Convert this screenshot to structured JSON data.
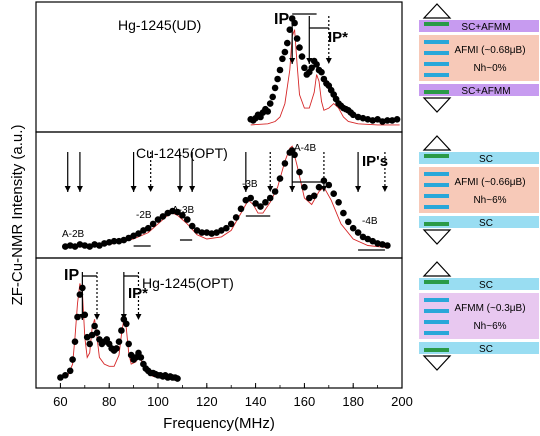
{
  "chart_data": {
    "type": "scatter",
    "xlabel": "Frequency(MHz)",
    "ylabel": "ZF-Cu-NMR Intensity  (a.u.)",
    "xlim": [
      50,
      200
    ],
    "x_ticks": [
      "60",
      "80",
      "100",
      "120",
      "140",
      "160",
      "180",
      "200"
    ],
    "panels": [
      {
        "name": "Hg-1245(UD)",
        "annotations": [
          "IP",
          "IP*"
        ],
        "points": [
          [
            138,
            0.06
          ],
          [
            139,
            0.05
          ],
          [
            140,
            0.07
          ],
          [
            141,
            0.1
          ],
          [
            142,
            0.08
          ],
          [
            143,
            0.12
          ],
          [
            144,
            0.15
          ],
          [
            145,
            0.13
          ],
          [
            146,
            0.2
          ],
          [
            147,
            0.26
          ],
          [
            148,
            0.34
          ],
          [
            149,
            0.42
          ],
          [
            150,
            0.5
          ],
          [
            151,
            0.6
          ],
          [
            152,
            0.66
          ],
          [
            153,
            0.74
          ],
          [
            154,
            0.86
          ],
          [
            155,
            0.96
          ],
          [
            156,
            0.92
          ],
          [
            157,
            0.78
          ],
          [
            158,
            0.7
          ],
          [
            159,
            0.62
          ],
          [
            160,
            0.52
          ],
          [
            161,
            0.46
          ],
          [
            162,
            0.48
          ],
          [
            163,
            0.52
          ],
          [
            164,
            0.58
          ],
          [
            165,
            0.55
          ],
          [
            166,
            0.5
          ],
          [
            167,
            0.48
          ],
          [
            168,
            0.42
          ],
          [
            169,
            0.38
          ],
          [
            170,
            0.36
          ],
          [
            171,
            0.32
          ],
          [
            172,
            0.28
          ],
          [
            173,
            0.24
          ],
          [
            174,
            0.2
          ],
          [
            175,
            0.18
          ],
          [
            176,
            0.16
          ],
          [
            177,
            0.15
          ],
          [
            178,
            0.14
          ],
          [
            179,
            0.12
          ],
          [
            180,
            0.1
          ],
          [
            182,
            0.08
          ],
          [
            184,
            0.07
          ],
          [
            186,
            0.06
          ],
          [
            188,
            0.05
          ],
          [
            190,
            0.06
          ],
          [
            192,
            0.04
          ],
          [
            194,
            0.05
          ],
          [
            196,
            0.05
          ],
          [
            198,
            0.06
          ]
        ],
        "fit_curve": [
          [
            138,
            0.01
          ],
          [
            145,
            0.02
          ],
          [
            148,
            0.04
          ],
          [
            150,
            0.08
          ],
          [
            152,
            0.2
          ],
          [
            154,
            0.5
          ],
          [
            155,
            0.8
          ],
          [
            156,
            0.86
          ],
          [
            157,
            0.55
          ],
          [
            158,
            0.28
          ],
          [
            160,
            0.16
          ],
          [
            162,
            0.16
          ],
          [
            164,
            0.3
          ],
          [
            165,
            0.46
          ],
          [
            166,
            0.4
          ],
          [
            167,
            0.22
          ],
          [
            168,
            0.14
          ],
          [
            170,
            0.16
          ],
          [
            172,
            0.2
          ],
          [
            174,
            0.16
          ],
          [
            176,
            0.08
          ],
          [
            178,
            0.04
          ],
          [
            182,
            0.02
          ],
          [
            190,
            0.01
          ],
          [
            199,
            0.01
          ]
        ]
      },
      {
        "name": "Cu-1245(OPT)",
        "annotations": [
          "IP's",
          "A-2B",
          "-2B",
          "A-3B",
          "-3B",
          "A-4B",
          "-4B"
        ],
        "points": [
          [
            62,
            0.05
          ],
          [
            64,
            0.06
          ],
          [
            66,
            0.05
          ],
          [
            68,
            0.07
          ],
          [
            70,
            0.06
          ],
          [
            72,
            0.05
          ],
          [
            74,
            0.07
          ],
          [
            76,
            0.06
          ],
          [
            78,
            0.08
          ],
          [
            80,
            0.09
          ],
          [
            82,
            0.1
          ],
          [
            84,
            0.1
          ],
          [
            86,
            0.11
          ],
          [
            88,
            0.13
          ],
          [
            90,
            0.15
          ],
          [
            92,
            0.17
          ],
          [
            94,
            0.2
          ],
          [
            96,
            0.22
          ],
          [
            98,
            0.26
          ],
          [
            100,
            0.3
          ],
          [
            102,
            0.33
          ],
          [
            104,
            0.36
          ],
          [
            106,
            0.38
          ],
          [
            108,
            0.37
          ],
          [
            110,
            0.34
          ],
          [
            112,
            0.3
          ],
          [
            114,
            0.24
          ],
          [
            116,
            0.2
          ],
          [
            118,
            0.18
          ],
          [
            120,
            0.18
          ],
          [
            122,
            0.17
          ],
          [
            124,
            0.18
          ],
          [
            126,
            0.2
          ],
          [
            128,
            0.22
          ],
          [
            130,
            0.26
          ],
          [
            132,
            0.32
          ],
          [
            134,
            0.4
          ],
          [
            136,
            0.48
          ],
          [
            138,
            0.5
          ],
          [
            140,
            0.45
          ],
          [
            142,
            0.42
          ],
          [
            144,
            0.46
          ],
          [
            146,
            0.5
          ],
          [
            148,
            0.56
          ],
          [
            150,
            0.68
          ],
          [
            152,
            0.82
          ],
          [
            154,
            0.92
          ],
          [
            155,
            0.94
          ],
          [
            156,
            0.9
          ],
          [
            158,
            0.74
          ],
          [
            160,
            0.6
          ],
          [
            162,
            0.5
          ],
          [
            164,
            0.52
          ],
          [
            166,
            0.6
          ],
          [
            168,
            0.66
          ],
          [
            170,
            0.62
          ],
          [
            172,
            0.54
          ],
          [
            174,
            0.46
          ],
          [
            176,
            0.36
          ],
          [
            178,
            0.28
          ],
          [
            180,
            0.22
          ],
          [
            182,
            0.18
          ],
          [
            184,
            0.14
          ],
          [
            186,
            0.12
          ],
          [
            188,
            0.1
          ],
          [
            190,
            0.08
          ],
          [
            192,
            0.07
          ],
          [
            194,
            0.06
          ]
        ],
        "fit_curve": [
          [
            62,
            0.04
          ],
          [
            70,
            0.05
          ],
          [
            80,
            0.07
          ],
          [
            90,
            0.12
          ],
          [
            96,
            0.18
          ],
          [
            100,
            0.26
          ],
          [
            104,
            0.34
          ],
          [
            106,
            0.36
          ],
          [
            108,
            0.34
          ],
          [
            112,
            0.26
          ],
          [
            116,
            0.16
          ],
          [
            120,
            0.12
          ],
          [
            126,
            0.14
          ],
          [
            130,
            0.2
          ],
          [
            134,
            0.36
          ],
          [
            137,
            0.48
          ],
          [
            139,
            0.44
          ],
          [
            141,
            0.36
          ],
          [
            143,
            0.36
          ],
          [
            146,
            0.46
          ],
          [
            149,
            0.6
          ],
          [
            152,
            0.84
          ],
          [
            154,
            0.96
          ],
          [
            155,
            0.98
          ],
          [
            157,
            0.8
          ],
          [
            160,
            0.5
          ],
          [
            163,
            0.44
          ],
          [
            166,
            0.56
          ],
          [
            168,
            0.6
          ],
          [
            171,
            0.48
          ],
          [
            175,
            0.26
          ],
          [
            180,
            0.12
          ],
          [
            186,
            0.06
          ],
          [
            194,
            0.04
          ]
        ]
      },
      {
        "name": "Hg-1245(OPT)",
        "annotations": [
          "IP",
          "IP*"
        ],
        "points": [
          [
            60,
            0.04
          ],
          [
            62,
            0.06
          ],
          [
            64,
            0.1
          ],
          [
            65,
            0.2
          ],
          [
            66,
            0.36
          ],
          [
            67,
            0.58
          ],
          [
            68,
            0.78
          ],
          [
            69,
            0.84
          ],
          [
            70,
            0.6
          ],
          [
            71,
            0.4
          ],
          [
            72,
            0.34
          ],
          [
            73,
            0.42
          ],
          [
            74,
            0.5
          ],
          [
            75,
            0.44
          ],
          [
            76,
            0.38
          ],
          [
            77,
            0.34
          ],
          [
            78,
            0.36
          ],
          [
            79,
            0.38
          ],
          [
            80,
            0.34
          ],
          [
            81,
            0.3
          ],
          [
            82,
            0.28
          ],
          [
            83,
            0.3
          ],
          [
            84,
            0.36
          ],
          [
            85,
            0.46
          ],
          [
            86,
            0.56
          ],
          [
            87,
            0.52
          ],
          [
            88,
            0.34
          ],
          [
            89,
            0.24
          ],
          [
            90,
            0.2
          ],
          [
            91,
            0.22
          ],
          [
            92,
            0.26
          ],
          [
            93,
            0.22
          ],
          [
            94,
            0.16
          ],
          [
            95,
            0.12
          ],
          [
            96,
            0.1
          ],
          [
            97,
            0.08
          ],
          [
            98,
            0.08
          ],
          [
            99,
            0.07
          ],
          [
            100,
            0.06
          ],
          [
            101,
            0.06
          ],
          [
            102,
            0.05
          ],
          [
            103,
            0.06
          ],
          [
            104,
            0.04
          ],
          [
            105,
            0.05
          ],
          [
            106,
            0.04
          ],
          [
            107,
            0.04
          ],
          [
            108,
            0.03
          ]
        ],
        "fit_curve": [
          [
            60,
            0.03
          ],
          [
            63,
            0.05
          ],
          [
            65,
            0.16
          ],
          [
            66,
            0.4
          ],
          [
            67,
            0.7
          ],
          [
            68,
            0.88
          ],
          [
            69,
            0.8
          ],
          [
            70,
            0.4
          ],
          [
            71,
            0.22
          ],
          [
            72,
            0.26
          ],
          [
            73,
            0.48
          ],
          [
            74,
            0.56
          ],
          [
            75,
            0.4
          ],
          [
            76,
            0.22
          ],
          [
            78,
            0.16
          ],
          [
            80,
            0.14
          ],
          [
            82,
            0.14
          ],
          [
            84,
            0.24
          ],
          [
            85,
            0.42
          ],
          [
            86,
            0.56
          ],
          [
            87,
            0.48
          ],
          [
            88,
            0.26
          ],
          [
            89,
            0.16
          ],
          [
            91,
            0.18
          ],
          [
            92,
            0.24
          ],
          [
            93,
            0.2
          ],
          [
            95,
            0.1
          ],
          [
            98,
            0.05
          ],
          [
            102,
            0.04
          ],
          [
            108,
            0.03
          ]
        ]
      }
    ],
    "arrows": [
      {
        "panel": 0,
        "x": 155,
        "ann_x": 147,
        "style": "solid"
      },
      {
        "panel": 0,
        "x": 162,
        "ann_x": 162,
        "style": "solid"
      },
      {
        "panel": 0,
        "x": 170,
        "ann_x": 160,
        "style": "dotted"
      },
      {
        "panel": 1,
        "x": 63,
        "ann_x": 63,
        "style": "solid"
      },
      {
        "panel": 1,
        "x": 68,
        "ann_x": 66,
        "style": "solid"
      },
      {
        "panel": 1,
        "x": 90,
        "ann_x": 90,
        "style": "solid"
      },
      {
        "panel": 1,
        "x": 97,
        "ann_x": 96,
        "style": "dotted"
      },
      {
        "panel": 1,
        "x": 109,
        "ann_x": 108,
        "style": "solid"
      },
      {
        "panel": 1,
        "x": 114,
        "ann_x": 113,
        "style": "solid"
      },
      {
        "panel": 1,
        "x": 136,
        "ann_x": 136,
        "style": "solid"
      },
      {
        "panel": 1,
        "x": 146,
        "ann_x": 145,
        "style": "dotted"
      },
      {
        "panel": 1,
        "x": 155,
        "ann_x": 154,
        "style": "solid"
      },
      {
        "panel": 1,
        "x": 168,
        "ann_x": 167,
        "style": "dotted"
      },
      {
        "panel": 1,
        "x": 182,
        "ann_x": 181,
        "style": "solid"
      },
      {
        "panel": 1,
        "x": 193,
        "ann_x": 192,
        "style": "dotted"
      },
      {
        "panel": 2,
        "x": 69,
        "ann_x": 69,
        "style": "solid"
      },
      {
        "panel": 2,
        "x": 75,
        "ann_x": 74,
        "style": "dotted"
      },
      {
        "panel": 2,
        "x": 86,
        "ann_x": 86,
        "style": "solid"
      },
      {
        "panel": 2,
        "x": 92,
        "ann_x": 92,
        "style": "dotted"
      }
    ],
    "brackets": [
      {
        "panel": 0,
        "x1": 155,
        "x2": 165
      },
      {
        "panel": 0,
        "x1": 162,
        "x2": 170
      },
      {
        "panel": 1,
        "x1": 90,
        "x2": 97
      },
      {
        "panel": 1,
        "x1": 109,
        "x2": 114
      },
      {
        "panel": 1,
        "x1": 136,
        "x2": 146
      },
      {
        "panel": 1,
        "x1": 155,
        "x2": 168
      },
      {
        "panel": 1,
        "x1": 182,
        "x2": 193
      },
      {
        "panel": 2,
        "x1": 69,
        "x2": 75
      },
      {
        "panel": 2,
        "x1": 86,
        "x2": 92
      }
    ],
    "colors": {
      "points": "#000000",
      "fit": "#d62728",
      "sc_afmm_band": "#c79bf0",
      "sc_band": "#99ddf2",
      "afmi_box": "#f7c9b8",
      "afmm_box": "#e8c8f0",
      "plane_blue": "#29a7d9",
      "plane_green": "#2a9a47"
    }
  },
  "diagrams": [
    {
      "top_layer": "SC+AFMM",
      "middle": "AFMI (~0.68μB)",
      "nh": "Nh~0%",
      "bottom_layer": "SC+AFMM"
    },
    {
      "top_layer": "SC",
      "middle": "AFMI (~0.66μB)",
      "nh": "Nh~6%",
      "bottom_layer": "SC"
    },
    {
      "top_layer": "SC",
      "middle": "AFMM (~0.3μB)",
      "nh": "Nh~6%",
      "bottom_layer": "SC"
    }
  ]
}
